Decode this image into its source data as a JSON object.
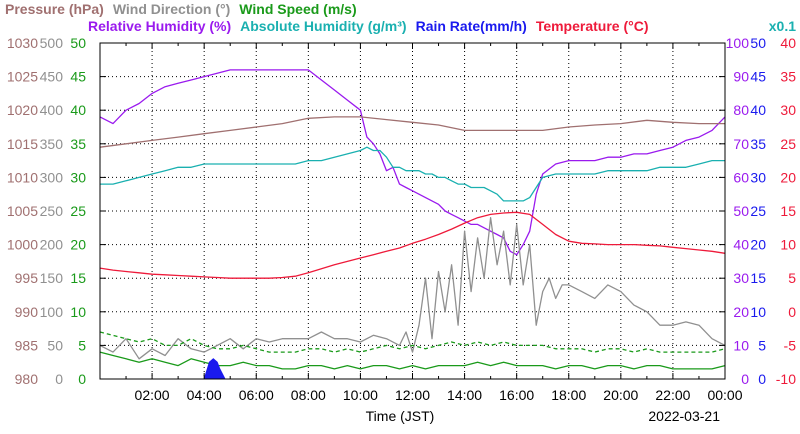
{
  "chart_data": {
    "type": "line",
    "date": "2022-03-21",
    "xlabel": "Time (JST)",
    "x_range_hours": [
      0,
      24
    ],
    "x_ticks": [
      "02:00",
      "04:00",
      "06:00",
      "08:00",
      "10:00",
      "12:00",
      "14:00",
      "16:00",
      "18:00",
      "20:00",
      "22:00",
      "00:00"
    ],
    "grid": true,
    "legend_row1": [
      {
        "name": "Pressure (hPa)",
        "color": "#a07070"
      },
      {
        "name": "Wind Direction (°)",
        "color": "#909090"
      },
      {
        "name": "Wind Speed (m/s)",
        "color": "#1a9a1a"
      }
    ],
    "legend_row2": [
      {
        "name": "Relative Humidity (%)",
        "color": "#9a1aee"
      },
      {
        "name": "Absolute Humidity (g/m³)",
        "color": "#1ab0b0"
      },
      {
        "name": "Rain Rate(mm/h)",
        "color": "#1a1aee"
      },
      {
        "name": "Temperature (°C)",
        "color": "#ee1a3a"
      }
    ],
    "scale_note": "x0.1",
    "axes": {
      "pressure": {
        "ticks": [
          "980",
          "985",
          "990",
          "995",
          "1000",
          "1005",
          "1010",
          "1015",
          "1020",
          "1025",
          "1030"
        ],
        "color": "#a07070",
        "range": [
          980,
          1030
        ]
      },
      "wind_dir": {
        "ticks": [
          "0",
          "50",
          "100",
          "150",
          "200",
          "250",
          "300",
          "350",
          "400",
          "450",
          "500"
        ],
        "color": "#909090",
        "range": [
          0,
          500
        ]
      },
      "wind_speed": {
        "ticks": [
          "0",
          "5",
          "10",
          "15",
          "20",
          "25",
          "30",
          "35",
          "40",
          "45",
          "50"
        ],
        "color": "#1a9a1a",
        "range": [
          0,
          50
        ]
      },
      "humidity": {
        "ticks": [
          "0",
          "10",
          "20",
          "30",
          "40",
          "50",
          "60",
          "70",
          "80",
          "90",
          "100"
        ],
        "color": "#9a1aee",
        "range": [
          0,
          100
        ]
      },
      "rain": {
        "ticks": [
          "0",
          "5",
          "10",
          "15",
          "20",
          "25",
          "30",
          "35",
          "40",
          "45",
          "50"
        ],
        "color": "#1a1aee",
        "range": [
          0,
          50
        ]
      },
      "temperature": {
        "ticks": [
          "-10",
          "-5",
          "0",
          "5",
          "10",
          "15",
          "20",
          "25",
          "30",
          "35",
          "40"
        ],
        "color": "#ee1a3a",
        "range": [
          -10,
          40
        ]
      }
    },
    "series": [
      {
        "name": "Relative Humidity",
        "axis": "humidity",
        "color": "#9a1aee",
        "x": [
          0,
          0.5,
          1,
          1.5,
          2,
          2.5,
          3,
          3.5,
          4,
          4.5,
          5,
          5.5,
          6,
          6.5,
          7,
          7.5,
          8,
          8.5,
          9,
          9.5,
          10,
          10.25,
          10.5,
          10.75,
          11,
          11.25,
          11.5,
          11.75,
          12,
          12.25,
          12.5,
          12.75,
          13,
          13.25,
          13.5,
          13.75,
          14,
          14.25,
          14.5,
          14.75,
          15,
          15.25,
          15.5,
          15.75,
          16,
          16.25,
          16.5,
          16.75,
          17,
          17.5,
          18,
          18.5,
          19,
          19.5,
          20,
          20.5,
          21,
          21.5,
          22,
          22.5,
          23,
          23.5,
          24
        ],
        "y": [
          78,
          76,
          80,
          82,
          85,
          87,
          88,
          89,
          90,
          91,
          92,
          92,
          92,
          92,
          92,
          92,
          92,
          89,
          86,
          83,
          80,
          72,
          70,
          67,
          62,
          63,
          58,
          57,
          56,
          55,
          54,
          53,
          52,
          50,
          49,
          48,
          47,
          46,
          46,
          45,
          44,
          43,
          42,
          38,
          37,
          40,
          44,
          55,
          61,
          64,
          65,
          65,
          65,
          66,
          66,
          67,
          67,
          68,
          69,
          71,
          72,
          74,
          78
        ]
      },
      {
        "name": "Absolute Humidity",
        "axis": "humidity",
        "color": "#1ab0b0",
        "x": [
          0,
          0.5,
          1,
          1.5,
          2,
          2.5,
          3,
          3.5,
          4,
          4.5,
          5,
          5.5,
          6,
          6.5,
          7,
          7.5,
          8,
          8.5,
          9,
          9.5,
          10,
          10.25,
          10.5,
          10.75,
          11,
          11.25,
          11.5,
          11.75,
          12,
          12.25,
          12.5,
          12.75,
          13,
          13.25,
          13.5,
          13.75,
          14,
          14.25,
          14.5,
          14.75,
          15,
          15.25,
          15.5,
          15.75,
          16,
          16.25,
          16.5,
          16.75,
          17,
          17.5,
          18,
          18.5,
          19,
          19.5,
          20,
          20.5,
          21,
          21.5,
          22,
          22.5,
          23,
          23.5,
          24
        ],
        "y": [
          58,
          58,
          59,
          60,
          61,
          62,
          63,
          63,
          64,
          64,
          64,
          64,
          64,
          64,
          64,
          64,
          65,
          65,
          66,
          67,
          68,
          69,
          68,
          68,
          66,
          63,
          63,
          62,
          62,
          62,
          61,
          61,
          60,
          60,
          59,
          58,
          58,
          57,
          57,
          57,
          56,
          55,
          53,
          53,
          53,
          53,
          54,
          57,
          60,
          61,
          61,
          61,
          61,
          62,
          62,
          62,
          62,
          63,
          63,
          63,
          64,
          65,
          65
        ]
      },
      {
        "name": "Temperature",
        "axis": "temperature",
        "color": "#ee1a3a",
        "x": [
          0,
          0.5,
          1,
          1.5,
          2,
          2.5,
          3,
          3.5,
          4,
          4.5,
          5,
          5.5,
          6,
          6.5,
          7,
          7.5,
          8,
          8.5,
          9,
          9.5,
          10,
          10.5,
          11,
          11.5,
          12,
          12.5,
          13,
          13.5,
          14,
          14.5,
          15,
          15.5,
          16,
          16.5,
          17,
          17.5,
          18,
          18.5,
          19,
          19.5,
          20,
          20.5,
          21,
          21.5,
          22,
          22.5,
          23,
          23.5,
          24
        ],
        "y": [
          6.5,
          6.2,
          6.0,
          5.8,
          5.6,
          5.5,
          5.4,
          5.3,
          5.2,
          5.1,
          5.0,
          5.0,
          5.0,
          5.0,
          5.1,
          5.3,
          5.8,
          6.4,
          7.0,
          7.5,
          8.0,
          8.5,
          9.0,
          9.5,
          10.2,
          10.8,
          11.5,
          12.3,
          13.2,
          14.0,
          14.5,
          14.7,
          14.8,
          14.5,
          13.0,
          11.5,
          10.5,
          10.2,
          10.1,
          10.0,
          10.0,
          10.0,
          9.9,
          9.8,
          9.6,
          9.4,
          9.2,
          9.0,
          8.7
        ]
      },
      {
        "name": "Pressure",
        "axis": "pressure",
        "color": "#a07070",
        "x": [
          0,
          1,
          2,
          3,
          4,
          5,
          6,
          7,
          8,
          9,
          10,
          11,
          12,
          13,
          14,
          15,
          16,
          17,
          18,
          19,
          20,
          21,
          22,
          23,
          24
        ],
        "y": [
          1014.5,
          1015.0,
          1015.5,
          1016.0,
          1016.5,
          1017.0,
          1017.5,
          1018.0,
          1018.8,
          1019.0,
          1019.0,
          1018.6,
          1018.2,
          1017.8,
          1017.0,
          1017.0,
          1017.0,
          1017.0,
          1017.5,
          1017.8,
          1018.0,
          1018.5,
          1018.2,
          1018.0,
          1018.0
        ]
      },
      {
        "name": "Wind Direction",
        "axis": "wind_dir",
        "color": "#909090",
        "x": [
          0,
          0.5,
          1,
          1.5,
          2,
          2.5,
          3,
          3.5,
          4,
          4.5,
          5,
          5.5,
          6,
          6.5,
          7,
          7.5,
          8,
          8.5,
          9,
          9.5,
          10,
          10.5,
          11,
          11.5,
          11.75,
          12,
          12.25,
          12.5,
          12.75,
          13,
          13.25,
          13.5,
          13.75,
          14,
          14.25,
          14.5,
          14.75,
          15,
          15.25,
          15.5,
          15.75,
          16,
          16.25,
          16.5,
          16.75,
          17,
          17.25,
          17.5,
          17.75,
          18,
          18.5,
          19,
          19.5,
          20,
          20.5,
          21,
          21.5,
          22,
          22.5,
          23,
          23.5,
          24
        ],
        "y": [
          50,
          40,
          60,
          30,
          45,
          35,
          60,
          45,
          40,
          50,
          60,
          45,
          60,
          55,
          60,
          60,
          60,
          70,
          60,
          60,
          55,
          65,
          60,
          50,
          70,
          40,
          80,
          150,
          60,
          160,
          100,
          170,
          80,
          220,
          130,
          210,
          150,
          240,
          170,
          220,
          140,
          230,
          140,
          200,
          80,
          130,
          150,
          120,
          140,
          140,
          130,
          120,
          140,
          130,
          110,
          100,
          80,
          80,
          85,
          80,
          60,
          50
        ]
      },
      {
        "name": "Wind Speed",
        "axis": "wind_speed",
        "color": "#1a9a1a",
        "x": [
          0,
          0.5,
          1,
          1.5,
          2,
          2.5,
          3,
          3.5,
          4,
          4.5,
          5,
          5.5,
          6,
          6.5,
          7,
          7.5,
          8,
          8.5,
          9,
          9.5,
          10,
          10.5,
          11,
          11.5,
          12,
          12.5,
          13,
          13.5,
          14,
          14.5,
          15,
          15.5,
          16,
          16.5,
          17,
          17.5,
          18,
          18.5,
          19,
          19.5,
          20,
          20.5,
          21,
          21.5,
          22,
          22.5,
          23,
          23.5,
          24
        ],
        "y": [
          4,
          3.5,
          3,
          2.5,
          3,
          2.5,
          2,
          3,
          2.5,
          2,
          2,
          2.5,
          2,
          2,
          1.5,
          1.5,
          2,
          2,
          1.5,
          2,
          1.5,
          2,
          2,
          1.5,
          2,
          1.5,
          2,
          2,
          2,
          2.5,
          2,
          2.5,
          2,
          2,
          2,
          1.5,
          2,
          2,
          1.5,
          2,
          2,
          1.5,
          2,
          2,
          1.5,
          1.5,
          1.5,
          1.5,
          2
        ]
      },
      {
        "name": "Wind Speed (gust)",
        "axis": "wind_speed",
        "color": "#1a9a1a",
        "dashed": true,
        "x": [
          0,
          0.5,
          1,
          1.5,
          2,
          2.5,
          3,
          3.5,
          4,
          4.5,
          5,
          5.5,
          6,
          6.5,
          7,
          7.5,
          8,
          8.5,
          9,
          9.5,
          10,
          10.5,
          11,
          11.5,
          12,
          12.5,
          13,
          13.5,
          14,
          14.5,
          15,
          15.5,
          16,
          16.5,
          17,
          17.5,
          18,
          18.5,
          19,
          19.5,
          20,
          20.5,
          21,
          21.5,
          22,
          22.5,
          23,
          23.5,
          24
        ],
        "y": [
          7,
          6.5,
          6,
          5.5,
          6,
          5,
          5,
          6,
          5,
          4.5,
          4.5,
          5,
          4.5,
          4,
          4,
          4,
          4.5,
          4.5,
          4,
          4.5,
          4,
          4.5,
          5,
          4.5,
          5,
          4.5,
          5,
          5.5,
          5,
          5.5,
          5,
          5.5,
          5,
          5,
          5,
          4.5,
          4.5,
          4.5,
          4,
          4.5,
          4.5,
          4,
          4.5,
          4,
          4,
          4,
          4,
          4,
          4.5
        ]
      },
      {
        "name": "Rain Rate",
        "axis": "rain",
        "color": "#1a1aee",
        "fill": true,
        "x": [
          4.0,
          4.2,
          4.35,
          4.5,
          4.6,
          4.8
        ],
        "y": [
          0,
          2.5,
          3.0,
          2.5,
          1.5,
          0
        ]
      }
    ]
  }
}
